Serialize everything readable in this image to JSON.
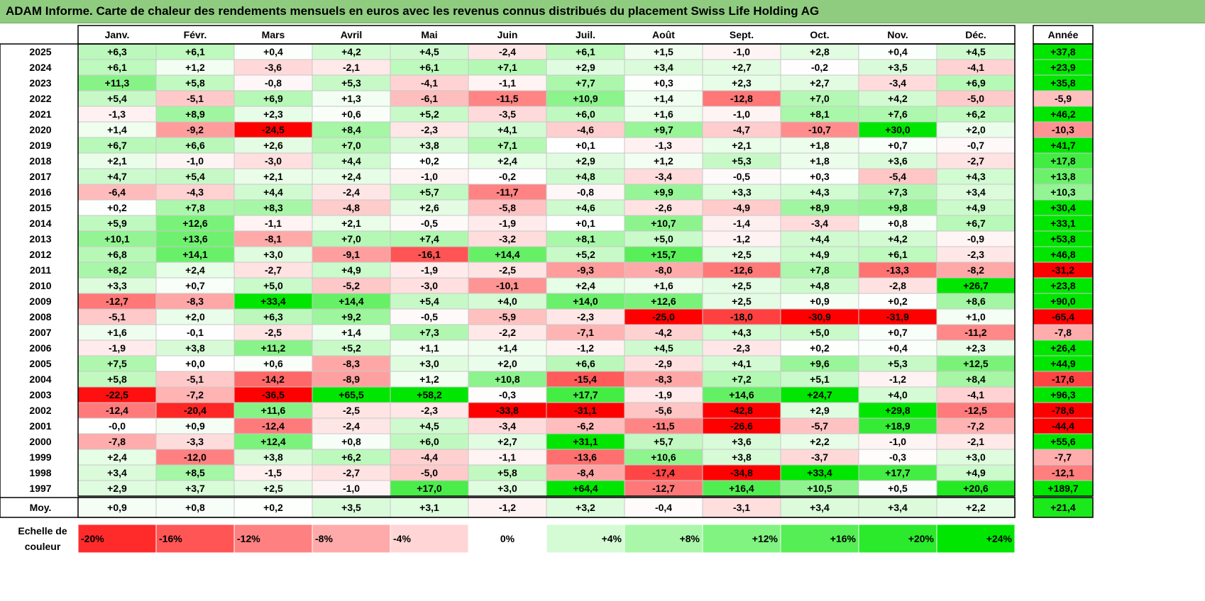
{
  "title": "ADAM Informe. Carte de chaleur des rendements mensuels en euros avec les revenus connus distribués du placement Swiss Life Holding AG",
  "chart_data": {
    "type": "heatmap",
    "columns": [
      "Janv.",
      "Févr.",
      "Mars",
      "Avril",
      "Mai",
      "Juin",
      "Juil.",
      "Août",
      "Sept.",
      "Oct.",
      "Nov.",
      "Déc."
    ],
    "year_header": "Année",
    "rows": [
      {
        "year": "2025",
        "values": [
          "+6,3",
          "+6,1",
          "+0,4",
          "+4,2",
          "+4,5",
          "-2,4",
          "+6,1",
          "+1,5",
          "-1,0",
          "+2,8",
          "+0,4",
          "+4,5"
        ],
        "annual": "+37,8"
      },
      {
        "year": "2024",
        "values": [
          "+6,1",
          "+1,2",
          "-3,6",
          "-2,1",
          "+6,1",
          "+7,1",
          "+2,9",
          "+3,4",
          "+2,7",
          "-0,2",
          "+3,5",
          "-4,1"
        ],
        "annual": "+23,9"
      },
      {
        "year": "2023",
        "values": [
          "+11,3",
          "+5,8",
          "-0,8",
          "+5,3",
          "-4,1",
          "-1,1",
          "+7,7",
          "+0,3",
          "+2,3",
          "+2,7",
          "-3,4",
          "+6,9"
        ],
        "annual": "+35,8"
      },
      {
        "year": "2022",
        "values": [
          "+5,4",
          "-5,1",
          "+6,9",
          "+1,3",
          "-6,1",
          "-11,5",
          "+10,9",
          "+1,4",
          "-12,8",
          "+7,0",
          "+4,2",
          "-5,0"
        ],
        "annual": "-5,9"
      },
      {
        "year": "2021",
        "values": [
          "-1,3",
          "+8,9",
          "+2,3",
          "+0,6",
          "+5,2",
          "-3,5",
          "+6,0",
          "+1,6",
          "-1,0",
          "+8,1",
          "+7,6",
          "+6,2"
        ],
        "annual": "+46,2"
      },
      {
        "year": "2020",
        "values": [
          "+1,4",
          "-9,2",
          "-24,5",
          "+8,4",
          "-2,3",
          "+4,1",
          "-4,6",
          "+9,7",
          "-4,7",
          "-10,7",
          "+30,0",
          "+2,0"
        ],
        "annual": "-10,3"
      },
      {
        "year": "2019",
        "values": [
          "+6,7",
          "+6,6",
          "+2,6",
          "+7,0",
          "+3,8",
          "+7,1",
          "+0,1",
          "-1,3",
          "+2,1",
          "+1,8",
          "+0,7",
          "-0,7"
        ],
        "annual": "+41,7"
      },
      {
        "year": "2018",
        "values": [
          "+2,1",
          "-1,0",
          "-3,0",
          "+4,4",
          "+0,2",
          "+2,4",
          "+2,9",
          "+1,2",
          "+5,3",
          "+1,8",
          "+3,6",
          "-2,7"
        ],
        "annual": "+17,8"
      },
      {
        "year": "2017",
        "values": [
          "+4,7",
          "+5,4",
          "+2,1",
          "+2,4",
          "-1,0",
          "-0,2",
          "+4,8",
          "-3,4",
          "-0,5",
          "+0,3",
          "-5,4",
          "+4,3"
        ],
        "annual": "+13,8"
      },
      {
        "year": "2016",
        "values": [
          "-6,4",
          "-4,3",
          "+4,4",
          "-2,4",
          "+5,7",
          "-11,7",
          "-0,8",
          "+9,9",
          "+3,3",
          "+4,3",
          "+7,3",
          "+3,4"
        ],
        "annual": "+10,3"
      },
      {
        "year": "2015",
        "values": [
          "+0,2",
          "+7,8",
          "+8,3",
          "-4,8",
          "+2,6",
          "-5,8",
          "+4,6",
          "-2,6",
          "-4,9",
          "+8,9",
          "+9,8",
          "+4,9"
        ],
        "annual": "+30,4"
      },
      {
        "year": "2014",
        "values": [
          "+5,9",
          "+12,6",
          "-1,1",
          "+2,1",
          "-0,5",
          "-1,9",
          "+0,1",
          "+10,7",
          "-1,4",
          "-3,4",
          "+0,8",
          "+6,7"
        ],
        "annual": "+33,1"
      },
      {
        "year": "2013",
        "values": [
          "+10,1",
          "+13,6",
          "-8,1",
          "+7,0",
          "+7,4",
          "-3,2",
          "+8,1",
          "+5,0",
          "-1,2",
          "+4,4",
          "+4,2",
          "-0,9"
        ],
        "annual": "+53,8"
      },
      {
        "year": "2012",
        "values": [
          "+6,8",
          "+14,1",
          "+3,0",
          "-9,1",
          "-16,1",
          "+14,4",
          "+5,2",
          "+15,7",
          "+2,5",
          "+4,9",
          "+6,1",
          "-2,3"
        ],
        "annual": "+46,8"
      },
      {
        "year": "2011",
        "values": [
          "+8,2",
          "+2,4",
          "-2,7",
          "+4,9",
          "-1,9",
          "-2,5",
          "-9,3",
          "-8,0",
          "-12,6",
          "+7,8",
          "-13,3",
          "-8,2"
        ],
        "annual": "-31,2"
      },
      {
        "year": "2010",
        "values": [
          "+3,3",
          "+0,7",
          "+5,0",
          "-5,2",
          "-3,0",
          "-10,1",
          "+2,4",
          "+1,6",
          "+2,5",
          "+4,8",
          "-2,8",
          "+26,7"
        ],
        "annual": "+23,8"
      },
      {
        "year": "2009",
        "values": [
          "-12,7",
          "-8,3",
          "+33,4",
          "+14,4",
          "+5,4",
          "+4,0",
          "+14,0",
          "+12,6",
          "+2,5",
          "+0,9",
          "+0,2",
          "+8,6"
        ],
        "annual": "+90,0"
      },
      {
        "year": "2008",
        "values": [
          "-5,1",
          "+2,0",
          "+6,3",
          "+9,2",
          "-0,5",
          "-5,9",
          "-2,3",
          "-25,0",
          "-18,0",
          "-30,9",
          "-31,9",
          "+1,0"
        ],
        "annual": "-65,4"
      },
      {
        "year": "2007",
        "values": [
          "+1,6",
          "-0,1",
          "-2,5",
          "+1,4",
          "+7,3",
          "-2,2",
          "-7,1",
          "-4,2",
          "+4,3",
          "+5,0",
          "+0,7",
          "-11,2"
        ],
        "annual": "-7,8"
      },
      {
        "year": "2006",
        "values": [
          "-1,9",
          "+3,8",
          "+11,2",
          "+5,2",
          "+1,1",
          "+1,4",
          "-1,2",
          "+4,5",
          "-2,3",
          "+0,2",
          "+0,4",
          "+2,3"
        ],
        "annual": "+26,4"
      },
      {
        "year": "2005",
        "values": [
          "+7,5",
          "+0,0",
          "+0,6",
          "-8,3",
          "+3,0",
          "+2,0",
          "+6,6",
          "-2,9",
          "+4,1",
          "+9,6",
          "+5,3",
          "+12,5"
        ],
        "annual": "+44,9"
      },
      {
        "year": "2004",
        "values": [
          "+5,8",
          "-5,1",
          "-14,2",
          "-8,9",
          "+1,2",
          "+10,8",
          "-15,4",
          "-8,3",
          "+7,2",
          "+5,1",
          "-1,2",
          "+8,4"
        ],
        "annual": "-17,6"
      },
      {
        "year": "2003",
        "values": [
          "-22,5",
          "-7,2",
          "-36,5",
          "+65,5",
          "+58,2",
          "-0,3",
          "+17,7",
          "-1,9",
          "+14,6",
          "+24,7",
          "+4,0",
          "-4,1"
        ],
        "annual": "+96,3"
      },
      {
        "year": "2002",
        "values": [
          "-12,4",
          "-20,4",
          "+11,6",
          "-2,5",
          "-2,3",
          "-33,8",
          "-31,1",
          "-5,6",
          "-42,8",
          "+2,9",
          "+29,8",
          "-12,5"
        ],
        "annual": "-78,6"
      },
      {
        "year": "2001",
        "values": [
          "-0,0",
          "+0,9",
          "-12,4",
          "-2,4",
          "+4,5",
          "-3,4",
          "-6,2",
          "-11,5",
          "-26,6",
          "-5,7",
          "+18,9",
          "-7,2"
        ],
        "annual": "-44,4"
      },
      {
        "year": "2000",
        "values": [
          "-7,8",
          "-3,3",
          "+12,4",
          "+0,8",
          "+6,0",
          "+2,7",
          "+31,1",
          "+5,7",
          "+3,6",
          "+2,2",
          "-1,0",
          "-2,1"
        ],
        "annual": "+55,6"
      },
      {
        "year": "1999",
        "values": [
          "+2,4",
          "-12,0",
          "+3,8",
          "+6,2",
          "-4,4",
          "-1,1",
          "-13,6",
          "+10,6",
          "+3,8",
          "-3,7",
          "-0,3",
          "+3,0"
        ],
        "annual": "-7,7"
      },
      {
        "year": "1998",
        "values": [
          "+3,4",
          "+8,5",
          "-1,5",
          "-2,7",
          "-5,0",
          "+5,8",
          "-8,4",
          "-17,4",
          "-34,8",
          "+33,4",
          "+17,7",
          "+4,9"
        ],
        "annual": "-12,1"
      },
      {
        "year": "1997",
        "values": [
          "+2,9",
          "+3,7",
          "+2,5",
          "-1,0",
          "+17,0",
          "+3,0",
          "+64,4",
          "-12,7",
          "+16,4",
          "+10,5",
          "+0,5",
          "+20,6"
        ],
        "annual": "+189,7"
      }
    ],
    "average": {
      "label": "Moy.",
      "values": [
        "+0,9",
        "+0,8",
        "+0,2",
        "+3,5",
        "+3,1",
        "-1,2",
        "+3,2",
        "-0,4",
        "-3,1",
        "+3,4",
        "+3,4",
        "+2,2"
      ],
      "annual": "+21,4"
    },
    "color_scale": {
      "label_line1": "Echelle de",
      "label_line2": "couleur",
      "stops": [
        "-20%",
        "-16%",
        "-12%",
        "-8%",
        "-4%",
        "0%",
        "+4%",
        "+8%",
        "+12%",
        "+16%",
        "+20%",
        "+24%"
      ]
    },
    "colors": {
      "positive_max": "#00e600",
      "negative_max": "#ff0000",
      "neutral": "#ffffff",
      "title_bar": "#8fcc80"
    }
  }
}
